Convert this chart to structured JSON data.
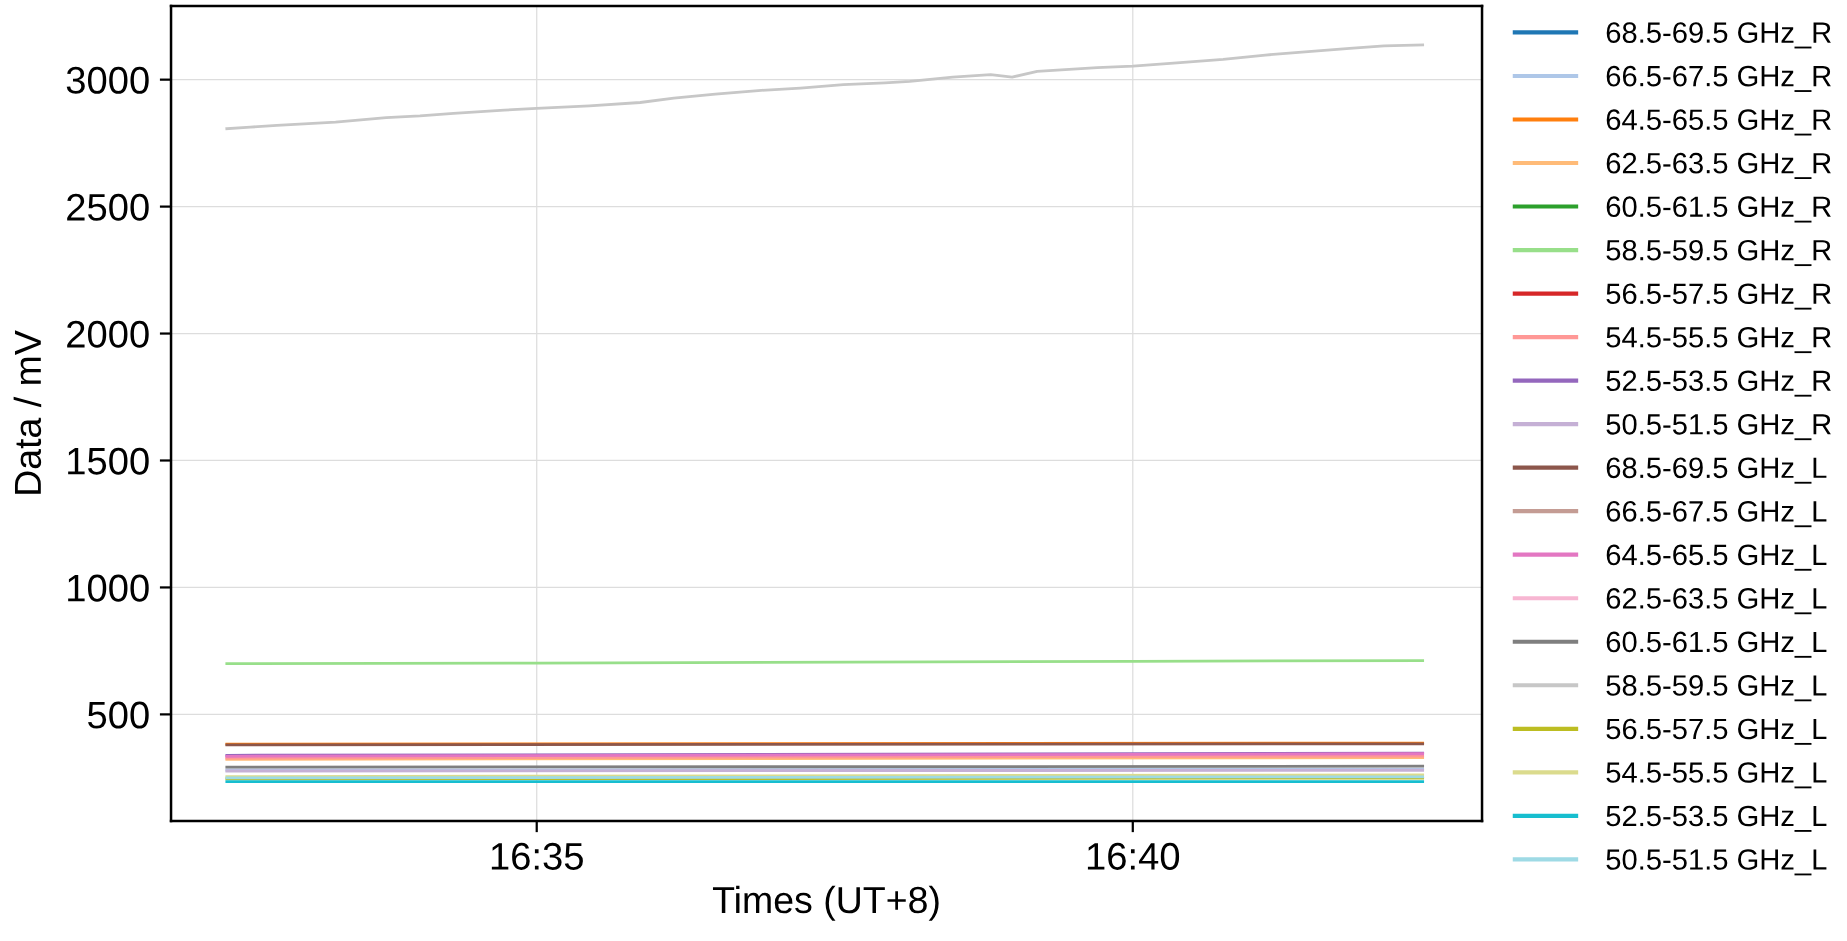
{
  "chart_data": {
    "type": "line",
    "xlabel": "Times (UT+8)",
    "ylabel": "Data / mV",
    "xlim": [
      16.5322,
      16.7155
    ],
    "xticks": [
      {
        "value": 16.58333,
        "label": "16:35"
      },
      {
        "value": 16.66667,
        "label": "16:40"
      }
    ],
    "ylim": [
      80,
      3290
    ],
    "yticks": [
      500,
      1000,
      1500,
      2000,
      2500,
      3000
    ],
    "grid": true,
    "legend": "right",
    "series": [
      {
        "name": "68.5-69.5 GHz_R",
        "color": "#1f77b4",
        "values": [
          null,
          null
        ]
      },
      {
        "name": "66.5-67.5 GHz_R",
        "color": "#aec7e8",
        "x": [
          16.54,
          16.7072
        ],
        "values": [
          281,
          284
        ]
      },
      {
        "name": "64.5-65.5 GHz_R",
        "color": "#ff7f0e",
        "x": [
          16.54,
          16.7072
        ],
        "values": [
          383,
          387
        ]
      },
      {
        "name": "62.5-63.5 GHz_R",
        "color": "#ffbb78",
        "x": [
          16.54,
          16.7072
        ],
        "values": [
          323,
          330
        ]
      },
      {
        "name": "60.5-61.5 GHz_R",
        "color": "#2ca02c",
        "values": [
          null,
          null
        ]
      },
      {
        "name": "58.5-59.5 GHz_R",
        "color": "#98df8a",
        "x": [
          16.54,
          16.5833,
          16.6667,
          16.7072
        ],
        "values": [
          700,
          702,
          709,
          712
        ]
      },
      {
        "name": "56.5-57.5 GHz_R",
        "color": "#d62728",
        "values": [
          null,
          null
        ]
      },
      {
        "name": "54.5-55.5 GHz_R",
        "color": "#ff9896",
        "x": [
          16.54,
          16.7072
        ],
        "values": [
          328,
          336
        ]
      },
      {
        "name": "52.5-53.5 GHz_R",
        "color": "#9467bd",
        "x": [
          16.54,
          16.7072
        ],
        "values": [
          339,
          347
        ]
      },
      {
        "name": "50.5-51.5 GHz_R",
        "color": "#c5b0d5",
        "x": [
          16.54,
          16.7072
        ],
        "values": [
          277,
          280
        ]
      },
      {
        "name": "68.5-69.5 GHz_L",
        "color": "#8c564b",
        "x": [
          16.54,
          16.7072
        ],
        "values": [
          380,
          384
        ]
      },
      {
        "name": "66.5-67.5 GHz_L",
        "color": "#c49c94",
        "values": [
          null,
          null
        ]
      },
      {
        "name": "64.5-65.5 GHz_L",
        "color": "#e377c2",
        "x": [
          16.54,
          16.7072
        ],
        "values": [
          335,
          345
        ]
      },
      {
        "name": "62.5-63.5 GHz_L",
        "color": "#f7b6d2",
        "values": [
          null,
          null
        ]
      },
      {
        "name": "60.5-61.5 GHz_L",
        "color": "#7f7f7f",
        "x": [
          16.54,
          16.7072
        ],
        "values": [
          292,
          296
        ]
      },
      {
        "name": "58.5-59.5 GHz_L",
        "color": "#c7c7c7",
        "x": [
          16.54,
          16.5433,
          16.547,
          16.5552,
          16.5623,
          16.567,
          16.5717,
          16.5788,
          16.5833,
          16.5907,
          16.5978,
          16.6025,
          16.6083,
          16.6143,
          16.6202,
          16.6262,
          16.632,
          16.6355,
          16.6415,
          16.6468,
          16.6498,
          16.6533,
          16.6617,
          16.6667,
          16.6733,
          16.6793,
          16.6852,
          16.6912,
          16.697,
          16.7018,
          16.7072
        ],
        "values": [
          2807,
          2813,
          2820,
          2833,
          2850,
          2857,
          2867,
          2880,
          2887,
          2897,
          2910,
          2927,
          2943,
          2957,
          2967,
          2980,
          2987,
          2993,
          3010,
          3020,
          3010,
          3033,
          3047,
          3053,
          3067,
          3080,
          3097,
          3110,
          3123,
          3133,
          3137
        ]
      },
      {
        "name": "56.5-57.5 GHz_L",
        "color": "#bcbd22",
        "x": [
          16.54,
          16.7072
        ],
        "values": [
          246,
          249
        ]
      },
      {
        "name": "54.5-55.5 GHz_L",
        "color": "#dbdb8d",
        "x": [
          16.54,
          16.7072
        ],
        "values": [
          255,
          262
        ]
      },
      {
        "name": "52.5-53.5 GHz_L",
        "color": "#17becf",
        "x": [
          16.54,
          16.7072
        ],
        "values": [
          235,
          235
        ]
      },
      {
        "name": "50.5-51.5 GHz_L",
        "color": "#9edae5",
        "x": [
          16.54,
          16.7072
        ],
        "values": [
          250,
          254
        ]
      }
    ]
  }
}
